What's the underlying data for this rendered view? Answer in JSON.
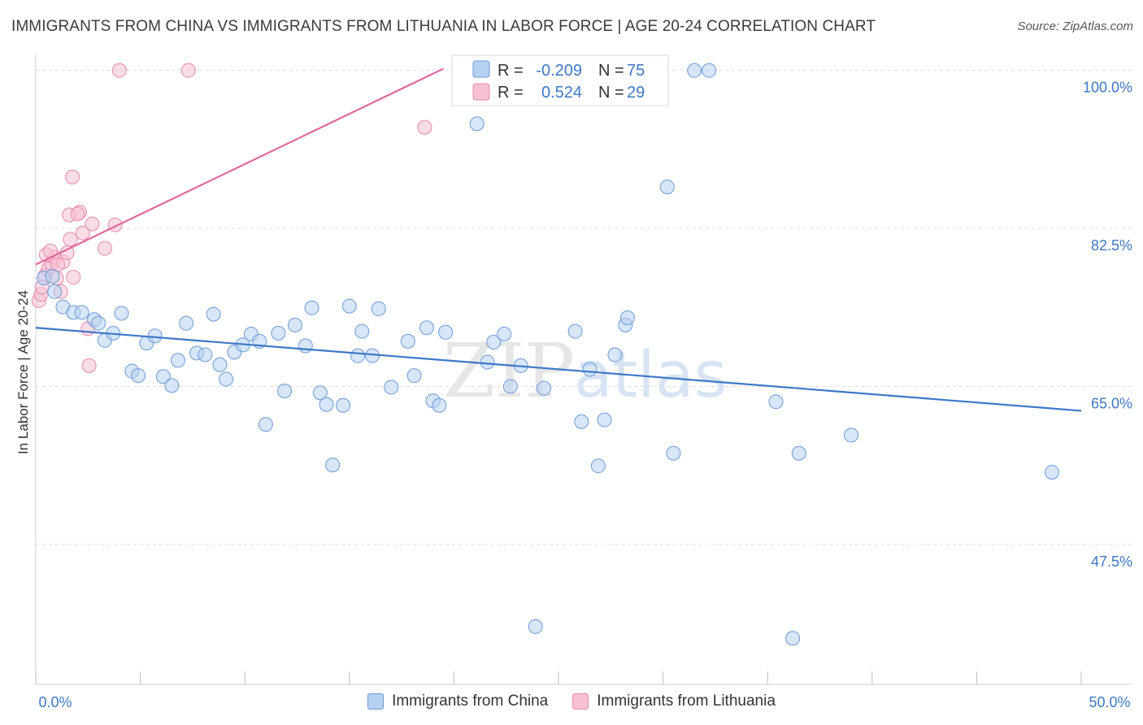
{
  "title": "IMMIGRANTS FROM CHINA VS IMMIGRANTS FROM LITHUANIA IN LABOR FORCE | AGE 20-24 CORRELATION CHART",
  "source": "Source: ZipAtlas.com",
  "watermark": {
    "zip": "ZIP",
    "atlas": "atlas"
  },
  "colors": {
    "china_fill": "#b7d1f2",
    "china_stroke": "#6a9bd8",
    "china_line": "#3d78c7",
    "lith_fill": "#f7c1d3",
    "lith_stroke": "#e58aab",
    "lith_line": "#e0689a",
    "axis_text": "#3d78c7",
    "grid": "#dcdcdc"
  },
  "legend": {
    "china": {
      "r_label": "R =",
      "r_value": "-0.209",
      "n_label": "N =",
      "n_value": "75"
    },
    "lithuania": {
      "r_label": "R =",
      "r_value": "0.524",
      "n_label": "N =",
      "n_value": "29"
    }
  },
  "chart_data": {
    "type": "scatter",
    "xlabel": "",
    "ylabel": "In Labor Force | Age 20-24",
    "xlim": [
      0,
      50
    ],
    "ylim": [
      32,
      101.5
    ],
    "x_tick_labels": [
      "0.0%",
      "50.0%"
    ],
    "y_ticks": [
      47.5,
      65.0,
      82.5,
      100.0
    ],
    "y_tick_labels": [
      "47.5%",
      "65.0%",
      "82.5%",
      "100.0%"
    ],
    "grid": true,
    "legend_position": "top-center",
    "series": [
      {
        "name": "Immigrants from China",
        "color_key": "china",
        "trend": {
          "x": [
            0,
            50
          ],
          "y": [
            71.5,
            62.3
          ]
        },
        "points": [
          [
            0.4,
            77.0
          ],
          [
            0.9,
            75.5
          ],
          [
            1.3,
            73.8
          ],
          [
            1.8,
            73.2
          ],
          [
            2.2,
            73.2
          ],
          [
            2.8,
            72.4
          ],
          [
            3.0,
            72.0
          ],
          [
            3.3,
            70.1
          ],
          [
            3.7,
            70.9
          ],
          [
            4.1,
            73.1
          ],
          [
            4.6,
            66.7
          ],
          [
            4.9,
            66.2
          ],
          [
            5.3,
            69.8
          ],
          [
            5.7,
            70.6
          ],
          [
            6.1,
            66.1
          ],
          [
            6.5,
            65.1
          ],
          [
            6.8,
            67.9
          ],
          [
            7.2,
            72.0
          ],
          [
            7.7,
            68.7
          ],
          [
            8.1,
            68.5
          ],
          [
            8.5,
            73.0
          ],
          [
            8.8,
            67.4
          ],
          [
            9.1,
            65.8
          ],
          [
            9.5,
            68.8
          ],
          [
            9.9,
            69.6
          ],
          [
            10.3,
            70.8
          ],
          [
            10.7,
            70.0
          ],
          [
            11.0,
            60.8
          ],
          [
            11.6,
            70.9
          ],
          [
            11.9,
            64.5
          ],
          [
            12.4,
            71.8
          ],
          [
            12.9,
            69.5
          ],
          [
            13.2,
            73.7
          ],
          [
            13.6,
            64.3
          ],
          [
            13.9,
            63.0
          ],
          [
            14.2,
            56.3
          ],
          [
            14.7,
            62.9
          ],
          [
            15.0,
            73.9
          ],
          [
            15.4,
            68.4
          ],
          [
            15.6,
            71.1
          ],
          [
            16.1,
            68.4
          ],
          [
            16.4,
            73.6
          ],
          [
            17.0,
            64.9
          ],
          [
            17.8,
            70.0
          ],
          [
            18.1,
            66.2
          ],
          [
            18.7,
            71.5
          ],
          [
            19.0,
            63.4
          ],
          [
            19.3,
            62.9
          ],
          [
            19.6,
            71.0
          ],
          [
            21.1,
            94.1
          ],
          [
            21.6,
            67.7
          ],
          [
            21.9,
            69.9
          ],
          [
            22.4,
            70.8
          ],
          [
            22.7,
            65.0
          ],
          [
            23.2,
            67.3
          ],
          [
            24.3,
            64.8
          ],
          [
            25.8,
            71.1
          ],
          [
            26.1,
            61.1
          ],
          [
            26.5,
            66.9
          ],
          [
            26.9,
            56.2
          ],
          [
            27.2,
            61.3
          ],
          [
            27.7,
            68.5
          ],
          [
            28.2,
            71.8
          ],
          [
            28.3,
            72.6
          ],
          [
            30.2,
            87.1
          ],
          [
            30.5,
            57.6
          ],
          [
            31.5,
            100.0
          ],
          [
            32.2,
            100.0
          ],
          [
            35.4,
            63.3
          ],
          [
            36.5,
            57.6
          ],
          [
            39.0,
            59.6
          ],
          [
            48.6,
            55.5
          ],
          [
            23.9,
            38.4
          ],
          [
            36.2,
            37.1
          ],
          [
            0.8,
            77.2
          ]
        ]
      },
      {
        "name": "Immigrants from Lithuania",
        "color_key": "lithuania",
        "trend": {
          "x": [
            0,
            19.5
          ],
          "y": [
            78.5,
            100.2
          ]
        },
        "points": [
          [
            0.15,
            74.5
          ],
          [
            0.25,
            75.2
          ],
          [
            0.3,
            76.0
          ],
          [
            0.45,
            77.3
          ],
          [
            0.6,
            78.0
          ],
          [
            0.75,
            78.6
          ],
          [
            0.9,
            79.3
          ],
          [
            1.0,
            77.0
          ],
          [
            1.2,
            75.5
          ],
          [
            1.3,
            78.8
          ],
          [
            1.5,
            79.8
          ],
          [
            1.65,
            81.3
          ],
          [
            1.8,
            77.1
          ],
          [
            1.75,
            88.2
          ],
          [
            1.6,
            84.0
          ],
          [
            2.1,
            84.3
          ],
          [
            2.25,
            82.0
          ],
          [
            2.5,
            71.4
          ],
          [
            2.55,
            67.3
          ],
          [
            2.7,
            83.0
          ],
          [
            3.3,
            80.3
          ],
          [
            3.8,
            82.9
          ],
          [
            4.0,
            100.0
          ],
          [
            7.3,
            100.0
          ],
          [
            18.6,
            93.7
          ],
          [
            0.5,
            79.6
          ],
          [
            0.7,
            80.0
          ],
          [
            1.05,
            78.5
          ],
          [
            2.0,
            84.1
          ]
        ]
      }
    ]
  },
  "bottom_legend": {
    "china": "Immigrants from China",
    "lithuania": "Immigrants from Lithuania"
  }
}
